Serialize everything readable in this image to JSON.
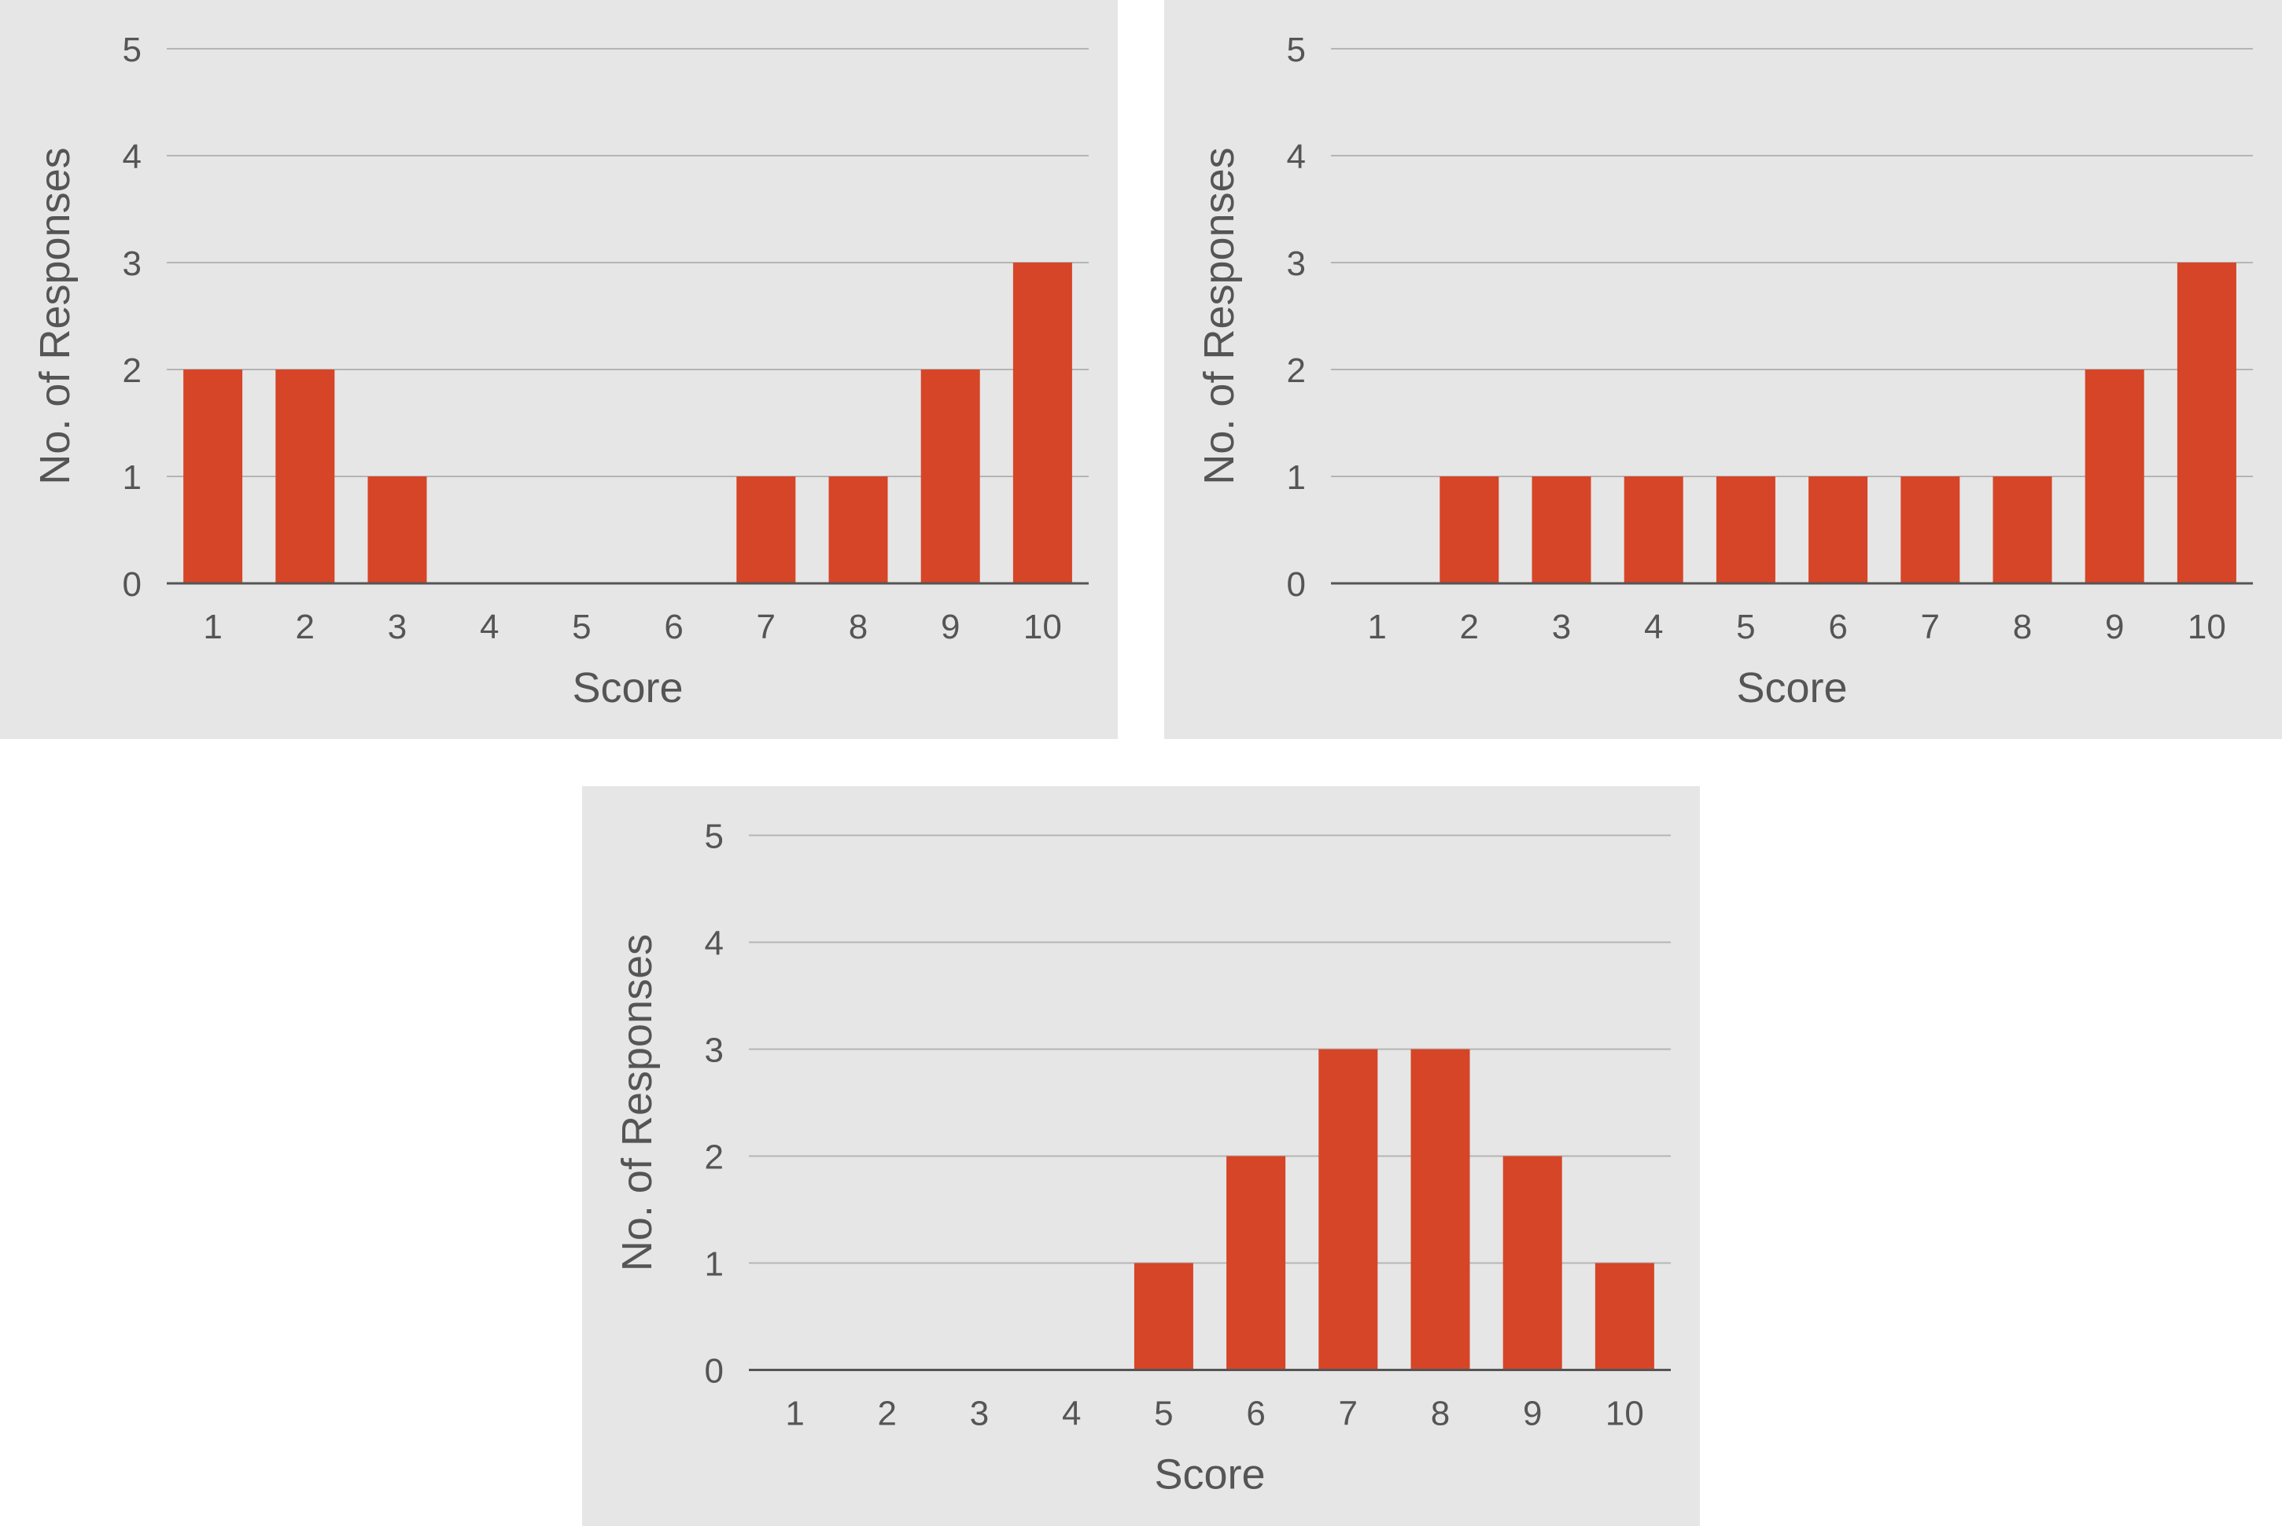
{
  "colors": {
    "bar": "#d64527",
    "panel": "#e6e6e6",
    "grid": "#b5b5b5",
    "axis": "#555555",
    "text": "#555555"
  },
  "chart_data": [
    {
      "type": "bar",
      "categories": [
        "1",
        "2",
        "3",
        "4",
        "5",
        "6",
        "7",
        "8",
        "9",
        "10"
      ],
      "values": [
        2,
        2,
        1,
        0,
        0,
        0,
        1,
        1,
        2,
        3
      ],
      "xlabel": "Score",
      "ylabel": "No. of Responses",
      "ylim": [
        0,
        5
      ],
      "yticks": [
        "0",
        "1",
        "2",
        "3",
        "4",
        "5"
      ],
      "grid": true
    },
    {
      "type": "bar",
      "categories": [
        "1",
        "2",
        "3",
        "4",
        "5",
        "6",
        "7",
        "8",
        "9",
        "10"
      ],
      "values": [
        0,
        1,
        1,
        1,
        1,
        1,
        1,
        1,
        2,
        3
      ],
      "xlabel": "Score",
      "ylabel": "No. of Responses",
      "ylim": [
        0,
        5
      ],
      "yticks": [
        "0",
        "1",
        "2",
        "3",
        "4",
        "5"
      ],
      "grid": true
    },
    {
      "type": "bar",
      "categories": [
        "1",
        "2",
        "3",
        "4",
        "5",
        "6",
        "7",
        "8",
        "9",
        "10"
      ],
      "values": [
        0,
        0,
        0,
        0,
        1,
        2,
        3,
        3,
        2,
        1
      ],
      "xlabel": "Score",
      "ylabel": "No. of Responses",
      "ylim": [
        0,
        5
      ],
      "yticks": [
        "0",
        "1",
        "2",
        "3",
        "4",
        "5"
      ],
      "grid": true
    }
  ]
}
